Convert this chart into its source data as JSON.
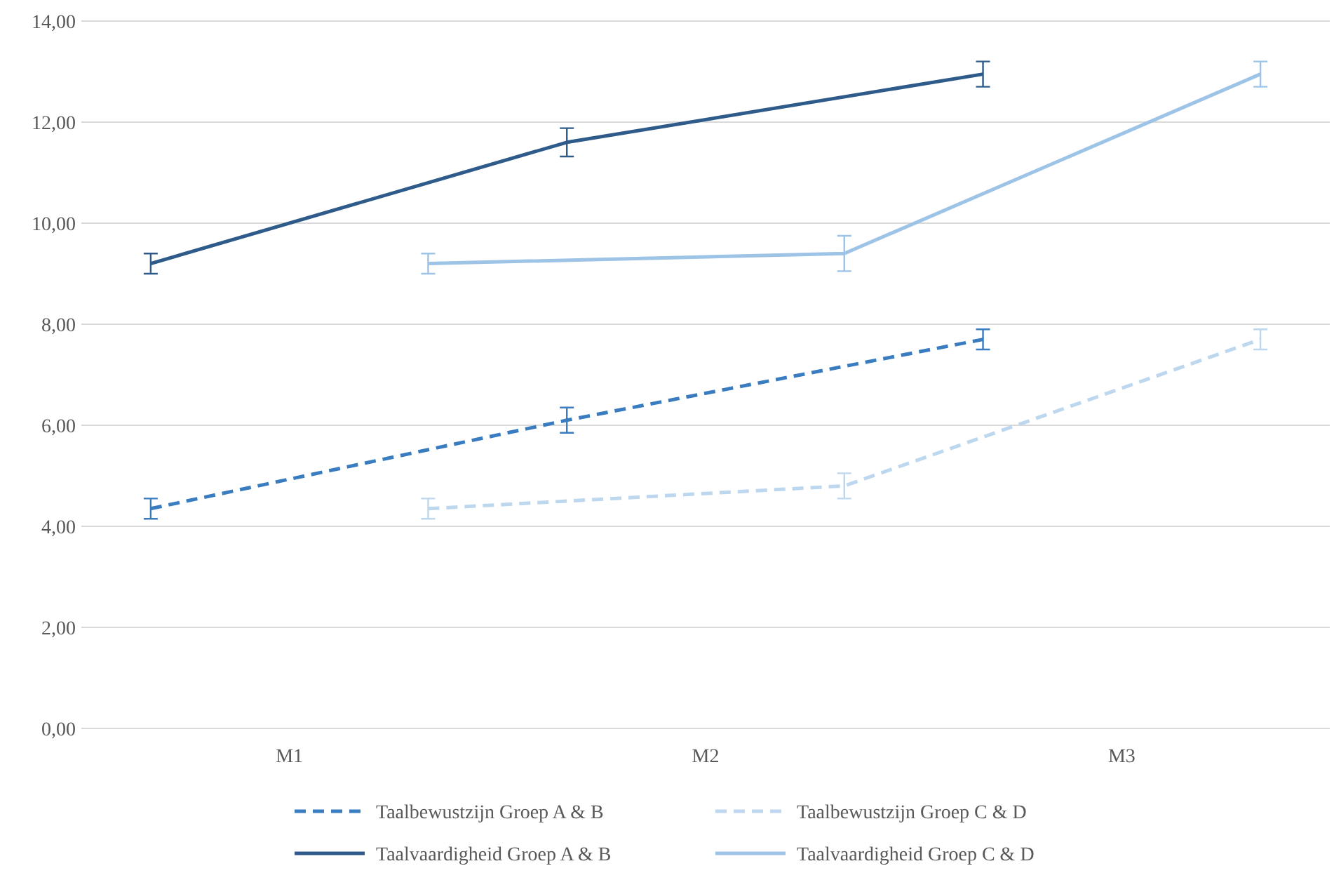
{
  "chart_data": {
    "type": "line",
    "categories": [
      null,
      "M1",
      null,
      null,
      "M2",
      null,
      null,
      "M3",
      null
    ],
    "ylim": [
      0,
      14
    ],
    "yticks": [
      {
        "value": 0,
        "label": "0,00"
      },
      {
        "value": 2,
        "label": "2,00"
      },
      {
        "value": 4,
        "label": "4,00"
      },
      {
        "value": 6,
        "label": "6,00"
      },
      {
        "value": 8,
        "label": "8,00"
      },
      {
        "value": 10,
        "label": "10,00"
      },
      {
        "value": 12,
        "label": "12,00"
      },
      {
        "value": 14,
        "label": "14,00"
      }
    ],
    "grid": "y",
    "legend": "bottom",
    "series": [
      {
        "name": "Taalbewustzijn Groep A & B",
        "color": "#3a7cc0",
        "line_style": "dashed",
        "values": [
          4.35,
          null,
          null,
          6.1,
          null,
          null,
          7.7,
          null,
          null
        ],
        "errors": [
          0.2,
          null,
          null,
          0.25,
          null,
          null,
          0.2,
          null,
          null
        ]
      },
      {
        "name": "Taalbewustzijn Groep C & D",
        "color": "#bdd7ee",
        "line_style": "dashed",
        "values": [
          null,
          null,
          4.35,
          null,
          null,
          4.8,
          null,
          null,
          7.7
        ],
        "errors": [
          null,
          null,
          0.2,
          null,
          null,
          0.25,
          null,
          null,
          0.2
        ]
      },
      {
        "name": "Taalvaardigheid Groep A & B",
        "color": "#2e5b8a",
        "line_style": "solid",
        "values": [
          9.2,
          null,
          null,
          11.6,
          null,
          null,
          12.95,
          null,
          null
        ],
        "errors": [
          0.2,
          null,
          null,
          0.28,
          null,
          null,
          0.25,
          null,
          null
        ]
      },
      {
        "name": "Taalvaardigheid Groep C & D",
        "color": "#9dc3e6",
        "line_style": "solid",
        "values": [
          null,
          null,
          9.2,
          null,
          null,
          9.4,
          null,
          null,
          12.95
        ],
        "errors": [
          null,
          null,
          0.2,
          null,
          null,
          0.35,
          null,
          null,
          0.25
        ]
      }
    ]
  }
}
